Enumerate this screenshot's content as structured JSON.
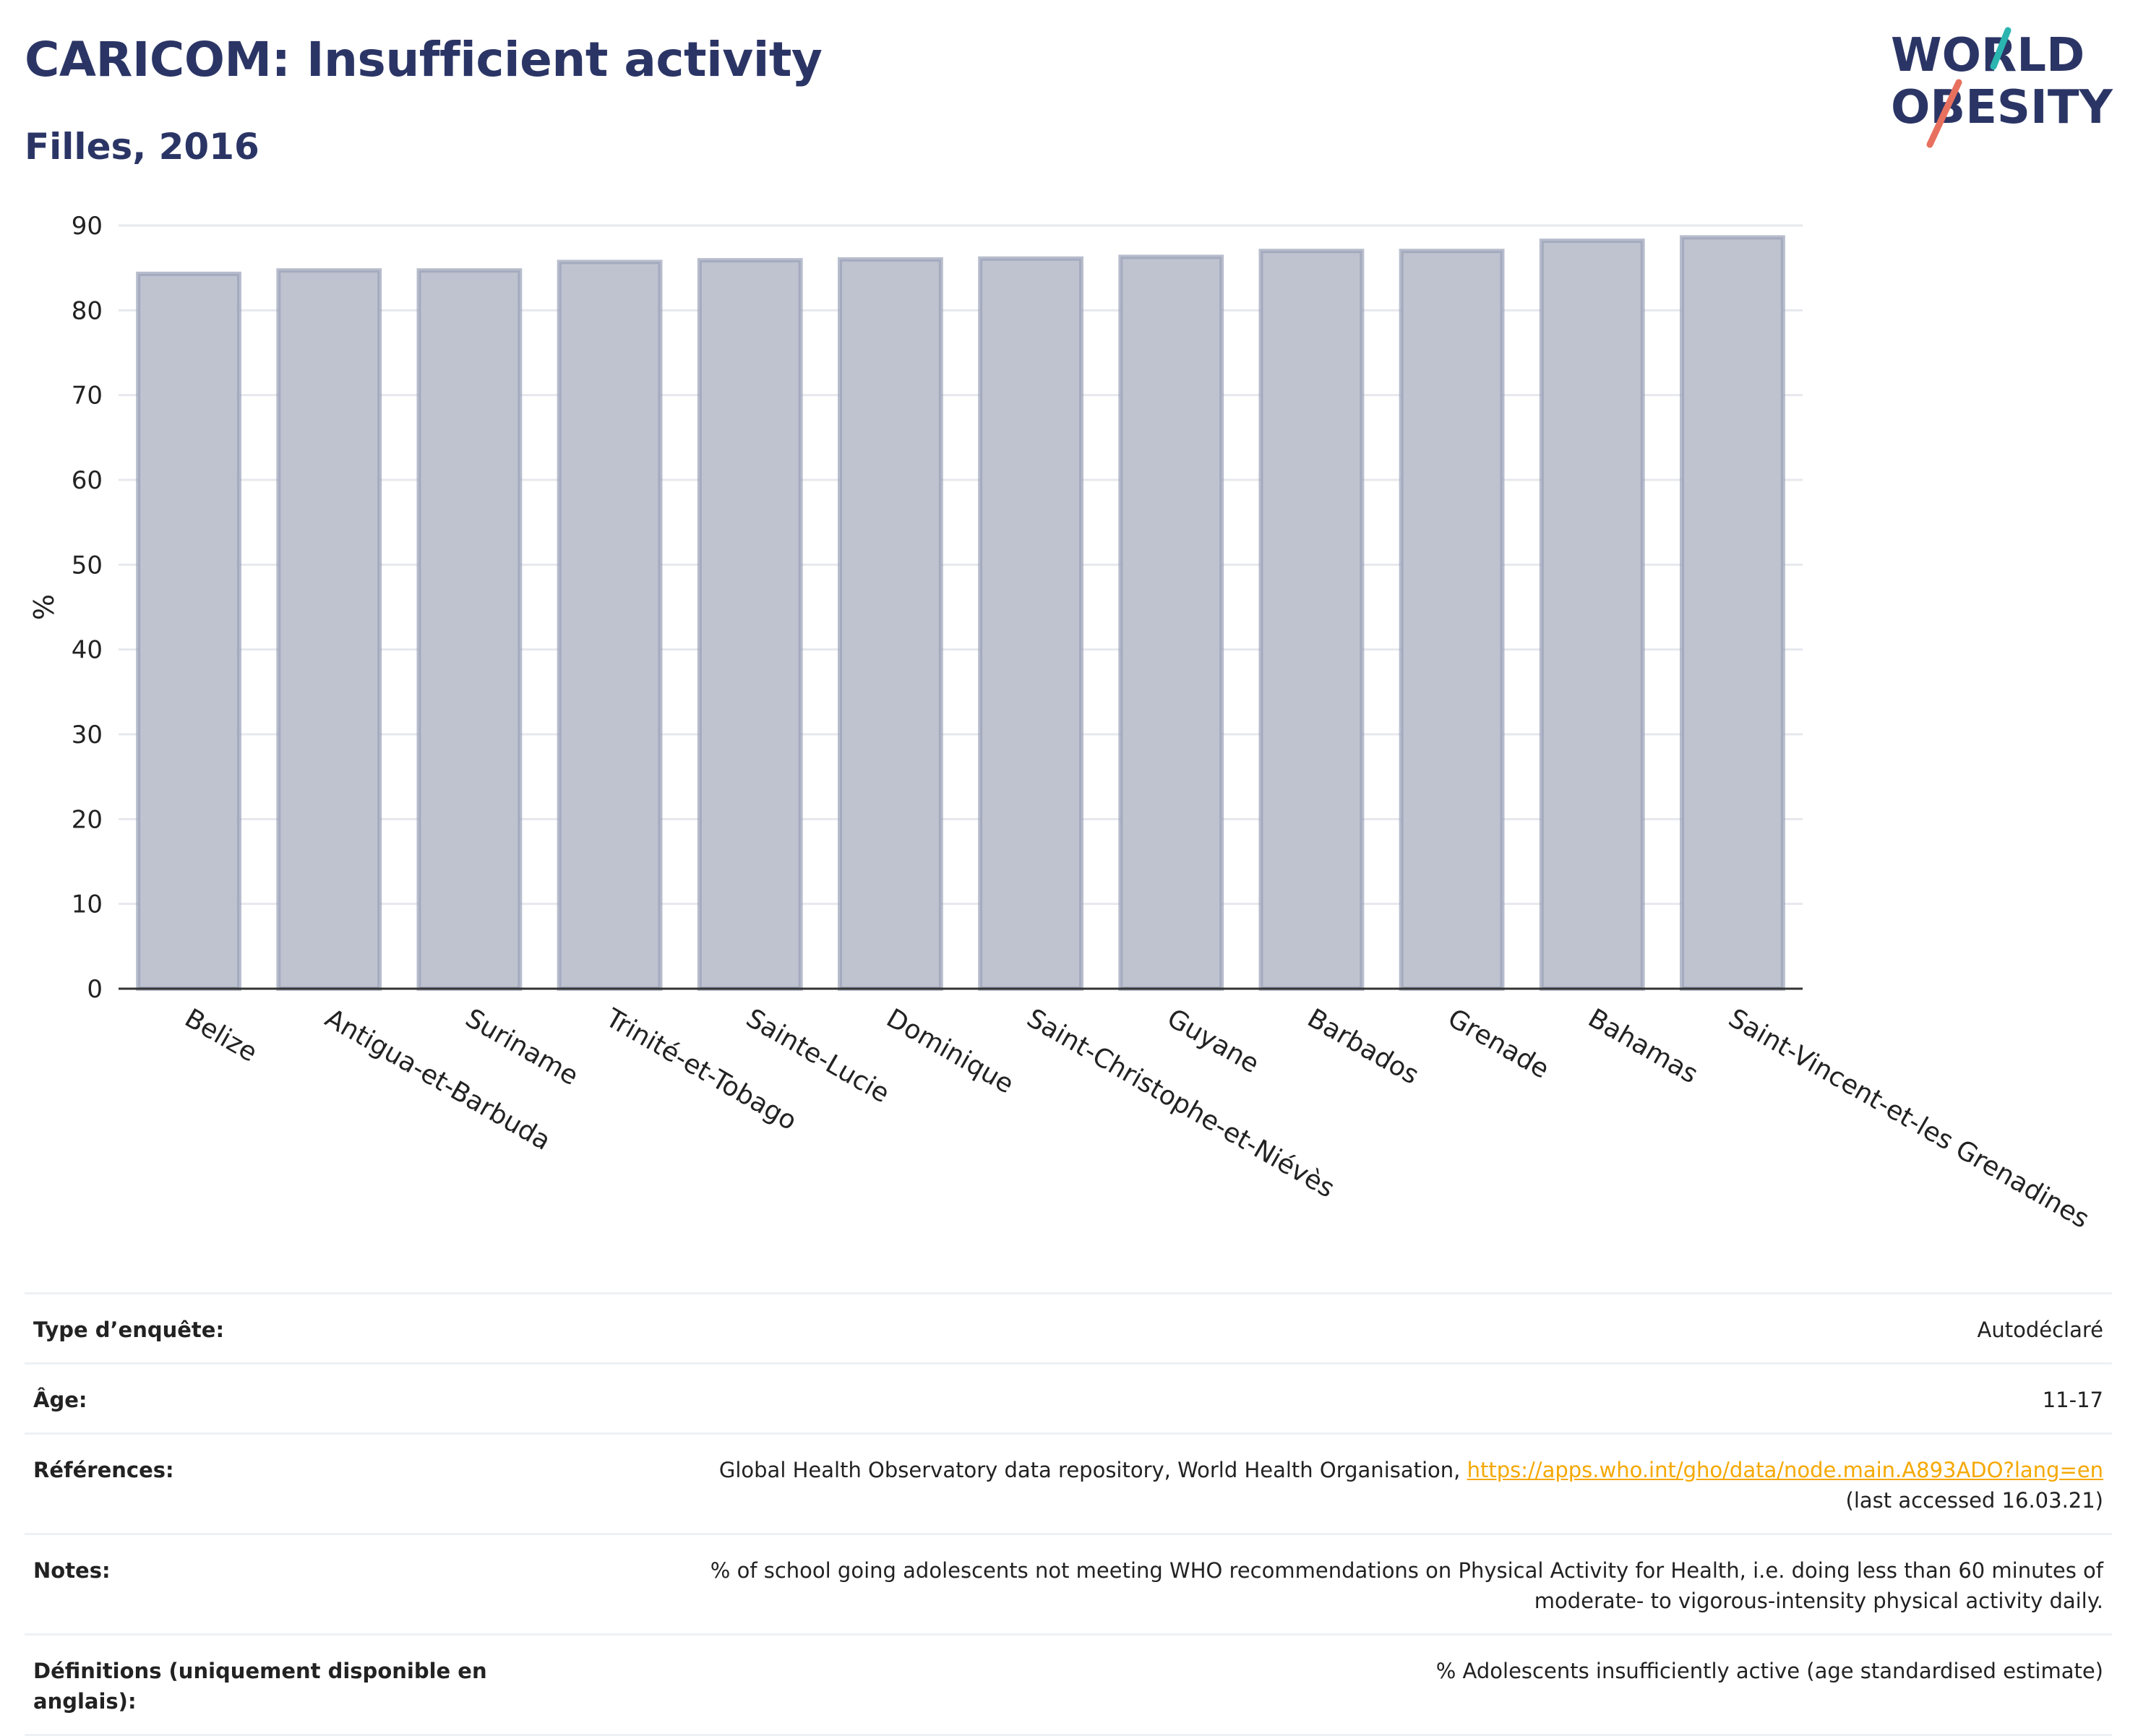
{
  "header": {
    "title": "CARICOM: Insufficient activity",
    "subtitle": "Filles, 2016"
  },
  "logo": {
    "line1": "WORLD",
    "line2": "OBESITY",
    "text_color": "#2b3565",
    "accent_teal": "#2bb5b0",
    "accent_coral": "#e8705f"
  },
  "chart_data": {
    "type": "bar",
    "title": "CARICOM: Insufficient activity",
    "subtitle": "Filles, 2016",
    "ylabel": "%",
    "xlabel": "",
    "ylim": [
      0,
      90
    ],
    "yticks": [
      0,
      10,
      20,
      30,
      40,
      50,
      60,
      70,
      80,
      90
    ],
    "grid": true,
    "categories": [
      "Belize",
      "Antigua-et-Barbuda",
      "Suriname",
      "Trinité-et-Tobago",
      "Sainte-Lucie",
      "Dominique",
      "Saint-Christophe-et-Niévès",
      "Guyane",
      "Barbados",
      "Grenade",
      "Bahamas",
      "Saint-Vincent-et-les Grenadines"
    ],
    "values": [
      84.3,
      84.7,
      84.7,
      85.7,
      85.9,
      86.0,
      86.1,
      86.3,
      87.0,
      87.0,
      88.2,
      88.6
    ],
    "bar_fill": "#bfc3d0",
    "bar_stroke": "#9aa1b8"
  },
  "meta": {
    "rows": [
      {
        "label": "Type d’enquête:",
        "value": "Autodéclaré"
      },
      {
        "label": "Âge:",
        "value": "11-17"
      },
      {
        "label": "Références:",
        "value": "Global Health Observatory data repository, World Health Organisation,",
        "link": "https://apps.who.int/gho/data/node.main.A893ADO?lang=en",
        "value2": "(last accessed 16.03.21)"
      },
      {
        "label": "Notes:",
        "value": "% of school going adolescents not meeting WHO recommendations on Physical Activity for Health, i.e. doing less than 60 minutes of",
        "value2": "moderate- to vigorous-intensity physical activity daily."
      },
      {
        "label": "Définitions (uniquement disponible en anglais):",
        "value": "% Adolescents insufficiently active (age standardised estimate)"
      }
    ]
  }
}
